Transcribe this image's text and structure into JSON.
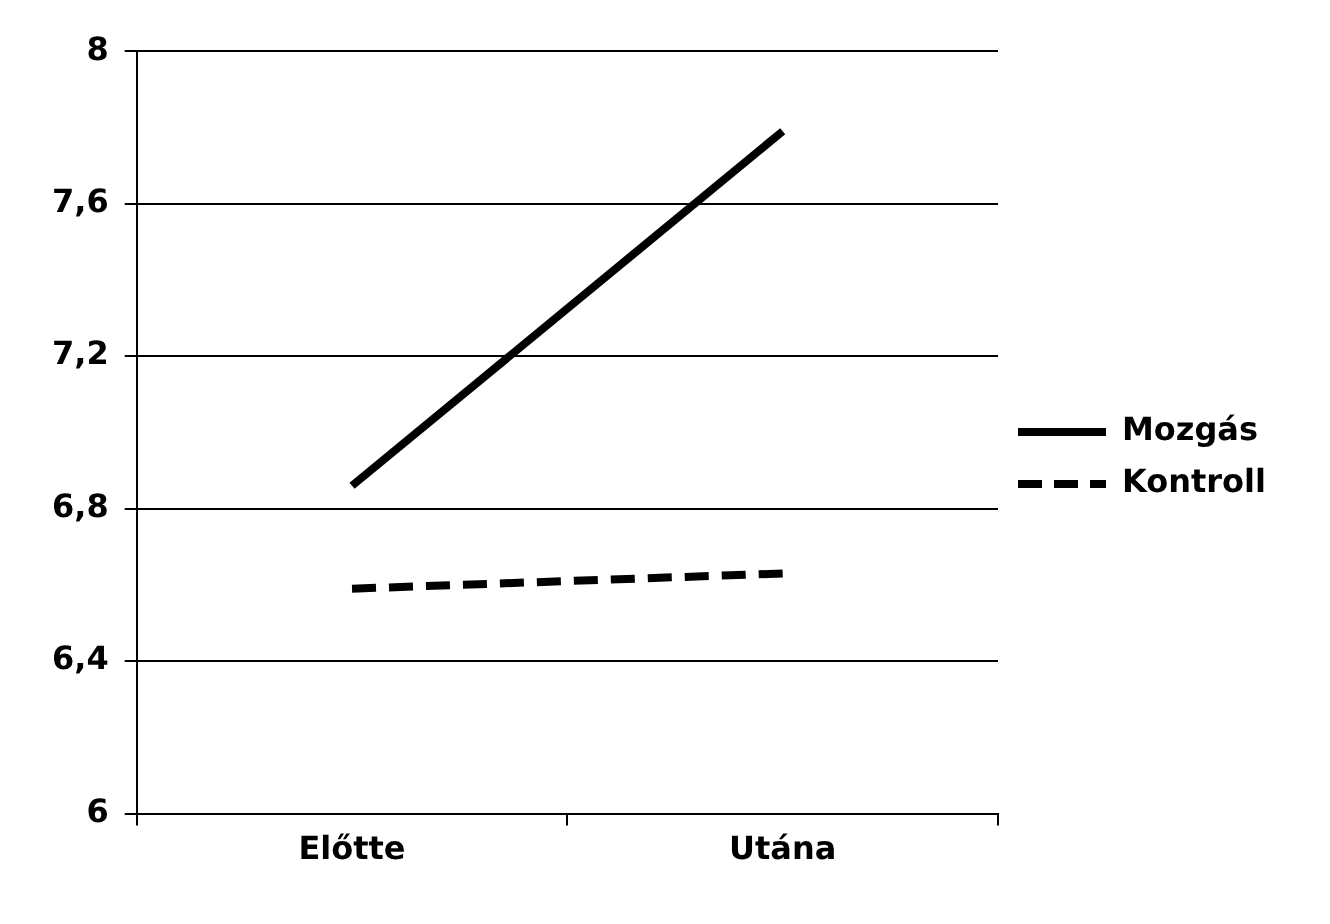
{
  "chart_data": {
    "type": "line",
    "categories": [
      "Előtte",
      "Utána"
    ],
    "series": [
      {
        "name": "Mozgás",
        "color": "#000000",
        "values": [
          6.86,
          7.79
        ],
        "line_style": "solid"
      },
      {
        "name": "Kontroll",
        "color": "#000000",
        "values": [
          6.59,
          6.63
        ],
        "line_style": "dashed"
      }
    ],
    "ylim": [
      6,
      8
    ],
    "yticks": [
      6,
      {
        "value": 6.4,
        "label": "6,4"
      },
      {
        "value": 6.8,
        "label": "6,8"
      },
      {
        "value": 7.2,
        "label": "7,2"
      },
      {
        "value": 7.6,
        "label": "7,6"
      },
      8
    ],
    "grid": "y",
    "legend": "right",
    "marker": "none"
  }
}
